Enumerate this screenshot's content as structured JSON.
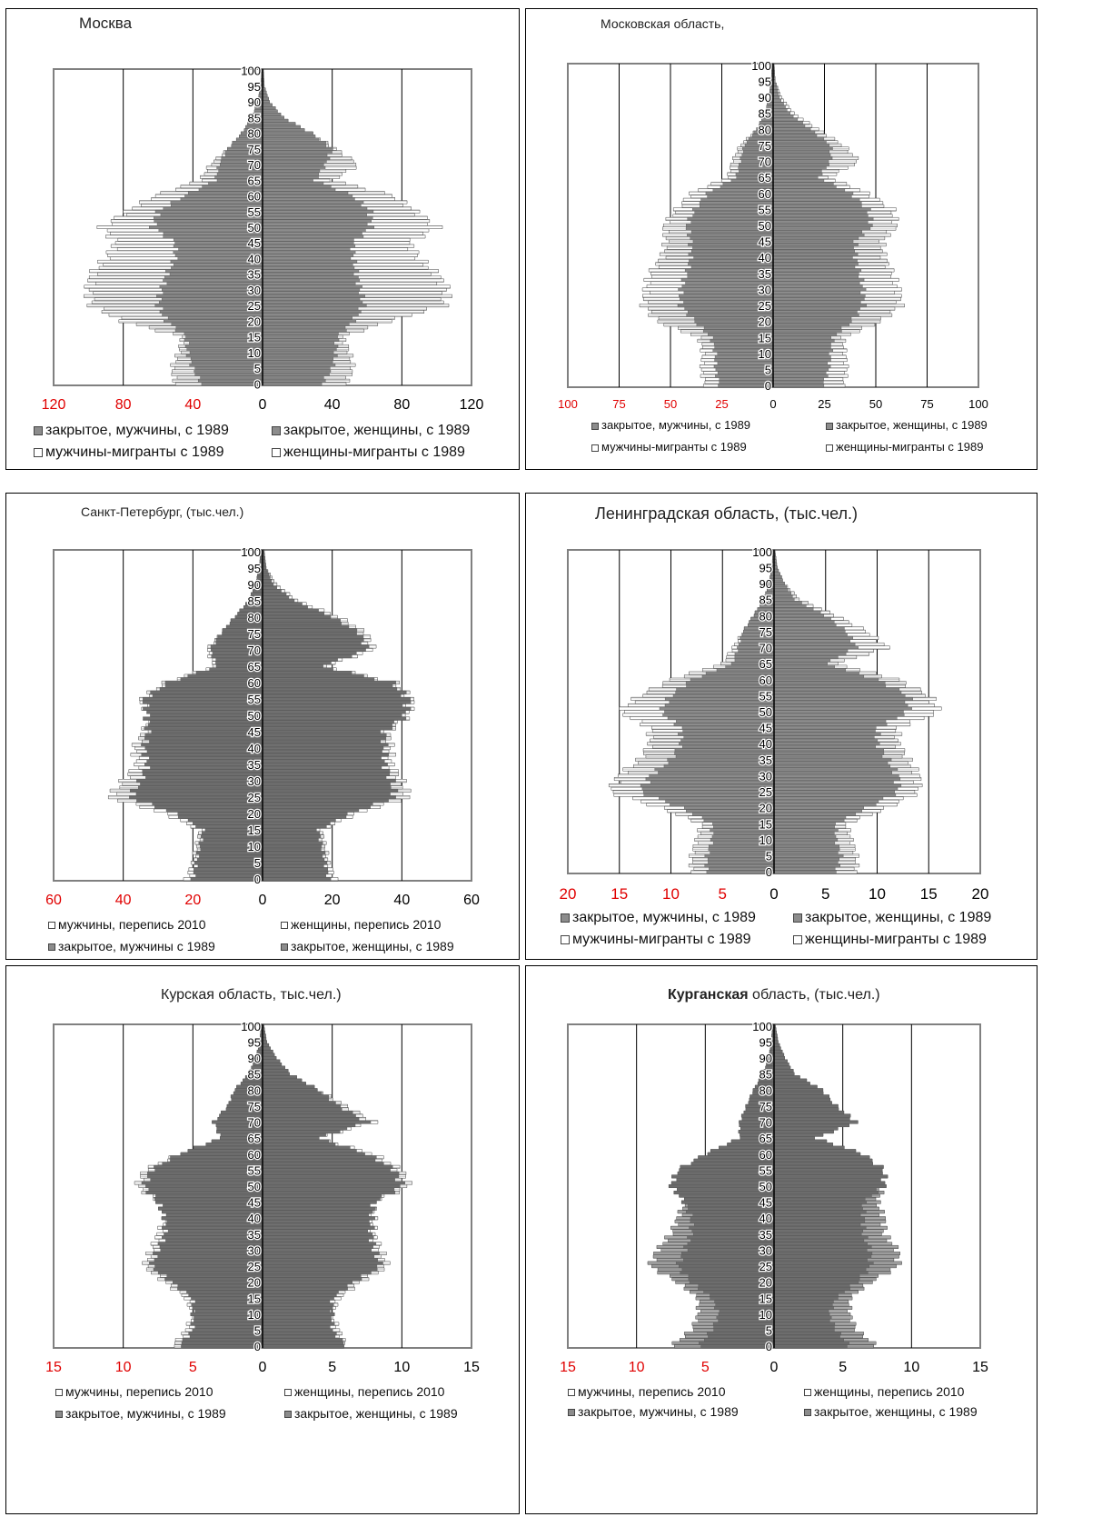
{
  "colors": {
    "closed_fill": "#8c8c8c",
    "closed_fill_dark": "#7a7a7a",
    "migrant_fill": "#ffffff",
    "stripe": "#5a5a5a",
    "frame": "#808080",
    "red_tick": "#e00000"
  },
  "chart_data": [
    {
      "type": "bar",
      "title": "Москва",
      "age_ticks": [
        "100",
        "95",
        "90",
        "85",
        "80",
        "75",
        "70",
        "65",
        "60",
        "55",
        "50",
        "45",
        "40",
        "35",
        "30",
        "25",
        "20",
        "15",
        "10",
        "5",
        "0"
      ],
      "x_tick_labels": [
        "120",
        "80",
        "40",
        "0",
        "40",
        "80",
        "120"
      ],
      "xlim": [
        -120,
        120
      ],
      "legend": [
        "закрытое, мужчины, с 1989",
        "закрытое, женщины, с 1989",
        "мужчины-мигранты с 1989",
        "женщины-мигранты с 1989"
      ],
      "ages": [
        0,
        5,
        10,
        15,
        20,
        25,
        30,
        35,
        40,
        45,
        50,
        55,
        60,
        65,
        70,
        75,
        80,
        85,
        90,
        95,
        100
      ],
      "series": [
        {
          "name": "закрытое, мужчины, с 1989",
          "values": [
            -35,
            -40,
            -43,
            -44,
            -55,
            -60,
            -58,
            -55,
            -50,
            -50,
            -63,
            -60,
            -45,
            -27,
            -25,
            -20,
            -12,
            -6,
            -3,
            -1,
            -0.5
          ]
        },
        {
          "name": "закрытое, женщины, с 1989",
          "values": [
            34,
            40,
            42,
            43,
            52,
            58,
            56,
            54,
            52,
            52,
            62,
            62,
            52,
            30,
            36,
            40,
            28,
            12,
            4,
            1,
            0.5
          ]
        },
        {
          "name": "мужчины-мигранты с 1989",
          "values": [
            -50,
            -52,
            -48,
            -46,
            -80,
            -98,
            -100,
            -98,
            -90,
            -84,
            -92,
            -78,
            -62,
            -36,
            -30,
            -20,
            -12,
            -6,
            -3,
            -1,
            -0.5
          ]
        },
        {
          "name": "женщины-мигранты с 1989",
          "values": [
            48,
            52,
            50,
            46,
            72,
            104,
            106,
            100,
            90,
            84,
            100,
            88,
            75,
            40,
            55,
            42,
            28,
            12,
            4,
            1,
            0.5
          ]
        }
      ]
    },
    {
      "type": "bar",
      "title": "Московская область,",
      "age_ticks": [
        "100",
        "95",
        "90",
        "85",
        "80",
        "75",
        "70",
        "65",
        "60",
        "55",
        "50",
        "45",
        "40",
        "35",
        "30",
        "25",
        "20",
        "15",
        "10",
        "5",
        "0"
      ],
      "x_tick_labels": [
        "100",
        "75",
        "50",
        "25",
        "0",
        "25",
        "50",
        "75",
        "100"
      ],
      "xlim": [
        -100,
        100
      ],
      "legend": [
        "закрытое, мужчины, с 1989",
        "закрытое, женщины, с 1989",
        "мужчины-мигранты с 1989",
        "женщины-мигранты с 1989"
      ],
      "ages": [
        0,
        5,
        10,
        15,
        20,
        25,
        30,
        35,
        40,
        45,
        50,
        55,
        60,
        65,
        70,
        75,
        80,
        85,
        90,
        95,
        100
      ],
      "series": [
        {
          "name": "закрытое, мужчины, с 1989",
          "values": [
            -26,
            -28,
            -28,
            -30,
            -38,
            -45,
            -45,
            -42,
            -40,
            -40,
            -42,
            -38,
            -32,
            -18,
            -16,
            -14,
            -8,
            -4,
            -2,
            -1,
            -0.5
          ]
        },
        {
          "name": "закрытое, женщины, с 1989",
          "values": [
            24,
            27,
            28,
            29,
            38,
            44,
            44,
            42,
            40,
            40,
            48,
            46,
            38,
            22,
            28,
            28,
            18,
            8,
            3,
            1,
            0.5
          ]
        },
        {
          "name": "мужчины-мигранты с 1989",
          "values": [
            -33,
            -35,
            -34,
            -36,
            -56,
            -63,
            -62,
            -60,
            -54,
            -52,
            -53,
            -47,
            -40,
            -22,
            -20,
            -16,
            -8,
            -4,
            -2,
            -1,
            -0.5
          ]
        },
        {
          "name": "женщины-мигранты с 1989",
          "values": [
            34,
            36,
            35,
            34,
            52,
            62,
            61,
            58,
            54,
            53,
            60,
            58,
            46,
            27,
            42,
            34,
            22,
            10,
            4,
            1,
            0.5
          ]
        }
      ]
    },
    {
      "type": "bar",
      "title": "Санкт-Петербург, (тыс.чел.)",
      "age_ticks": [
        "100",
        "95",
        "90",
        "85",
        "80",
        "75",
        "70",
        "65",
        "60",
        "55",
        "50",
        "45",
        "40",
        "35",
        "30",
        "25",
        "20",
        "15",
        "10",
        "5",
        "0"
      ],
      "x_tick_labels": [
        "60",
        "40",
        "20",
        "0",
        "20",
        "40",
        "60"
      ],
      "xlim": [
        -60,
        60
      ],
      "legend": [
        "мужчины, перепись 2010",
        "женщины, перепись 2010",
        "закрытое, мужчины с 1989",
        "закрытое, женщины, с 1989"
      ],
      "ages": [
        0,
        5,
        10,
        15,
        20,
        25,
        30,
        35,
        40,
        45,
        50,
        55,
        60,
        65,
        70,
        75,
        80,
        85,
        90,
        95,
        100
      ],
      "series": [
        {
          "name": "мужчины, перепись 2010",
          "values": [
            -22,
            -20,
            -19,
            -18,
            -28,
            -44,
            -40,
            -36,
            -37,
            -34,
            -33,
            -35,
            -28,
            -14,
            -16,
            -12,
            -8,
            -4,
            -2,
            -1,
            -0.5
          ]
        },
        {
          "name": "женщины, перепись 2010",
          "values": [
            21,
            19,
            18,
            17,
            27,
            42,
            40,
            37,
            37,
            36,
            42,
            43,
            38,
            18,
            32,
            30,
            22,
            10,
            4,
            1,
            0.5
          ]
        },
        {
          "name": "закрытое, мужчины с 1989",
          "values": [
            -20,
            -19,
            -18,
            -17,
            -25,
            -38,
            -35,
            -33,
            -34,
            -33,
            -33,
            -34,
            -27,
            -13,
            -15,
            -12,
            -8,
            -4,
            -2,
            -1,
            -0.5
          ]
        },
        {
          "name": "закрытое, женщины, с 1989",
          "values": [
            19,
            18,
            17,
            16,
            25,
            38,
            37,
            35,
            35,
            35,
            41,
            42,
            37,
            17,
            30,
            28,
            20,
            9,
            3,
            1,
            0.5
          ]
        }
      ]
    },
    {
      "type": "bar",
      "title": "Ленинградская область, (тыс.чел.)",
      "age_ticks": [
        "100",
        "95",
        "90",
        "85",
        "80",
        "75",
        "70",
        "65",
        "60",
        "55",
        "50",
        "45",
        "40",
        "35",
        "30",
        "25",
        "20",
        "15",
        "10",
        "5",
        "0"
      ],
      "x_tick_labels": [
        "20",
        "15",
        "10",
        "5",
        "0",
        "5",
        "10",
        "15",
        "20"
      ],
      "xlim": [
        -20,
        20
      ],
      "legend": [
        "закрытое, мужчины, с 1989",
        "закрытое, женщины, с 1989",
        "мужчины-мигранты с 1989",
        "женщины-мигранты с 1989"
      ],
      "ages": [
        0,
        5,
        10,
        15,
        20,
        25,
        30,
        35,
        40,
        45,
        50,
        55,
        60,
        65,
        70,
        75,
        80,
        85,
        90,
        95,
        100
      ],
      "series": [
        {
          "name": "закрытое, мужчины, с 1989",
          "values": [
            -6.5,
            -6.5,
            -6,
            -6,
            -9,
            -13,
            -12,
            -10,
            -9,
            -9,
            -11,
            -10,
            -8,
            -4,
            -3.5,
            -3,
            -2,
            -1,
            -0.5,
            -0.2,
            -0.1
          ]
        },
        {
          "name": "закрытое, женщины, с 1989",
          "values": [
            6,
            6.5,
            6,
            6,
            9,
            12,
            12,
            11,
            10,
            10,
            13,
            13,
            10,
            5,
            8,
            7,
            5,
            2,
            1,
            0.3,
            0.1
          ]
        },
        {
          "name": "мужчины-мигранты с 1989",
          "values": [
            -8,
            -8,
            -7.5,
            -7,
            -11,
            -16,
            -15,
            -13,
            -12,
            -12,
            -15,
            -13,
            -10,
            -5,
            -4,
            -3,
            -2,
            -1,
            -0.5,
            -0.2,
            -0.1
          ]
        },
        {
          "name": "женщины-мигранты с 1989",
          "values": [
            8,
            8,
            7.5,
            7,
            11,
            14,
            14,
            13,
            12,
            12,
            16,
            15,
            12,
            6,
            11,
            9,
            6,
            2.5,
            1,
            0.3,
            0.1
          ]
        }
      ]
    },
    {
      "type": "bar",
      "title": "Курская область, тыс.чел.)",
      "age_ticks": [
        "100",
        "95",
        "90",
        "85",
        "80",
        "75",
        "70",
        "65",
        "60",
        "55",
        "50",
        "45",
        "40",
        "35",
        "30",
        "25",
        "20",
        "15",
        "10",
        "5",
        "0"
      ],
      "x_tick_labels": [
        "15",
        "10",
        "5",
        "0",
        "5",
        "10",
        "15"
      ],
      "xlim": [
        -15,
        15
      ],
      "legend": [
        "мужчины, перепись 2010",
        "женщины, перепись 2010",
        "закрытое, мужчины, с 1989",
        "закрытое, женщины, с 1989"
      ],
      "ages": [
        0,
        5,
        10,
        15,
        20,
        25,
        30,
        35,
        40,
        45,
        50,
        55,
        60,
        65,
        70,
        75,
        80,
        85,
        90,
        95,
        100
      ],
      "series": [
        {
          "name": "мужчины, перепись 2010",
          "values": [
            -6.5,
            -5.5,
            -5,
            -5.5,
            -7,
            -8.5,
            -8,
            -7.5,
            -7,
            -7.5,
            -9,
            -8.5,
            -6,
            -3,
            -3.5,
            -2.5,
            -2,
            -1,
            -0.5,
            -0.2,
            -0.1
          ]
        },
        {
          "name": "женщины, перепись 2010",
          "values": [
            6,
            5.5,
            5,
            5.5,
            7,
            9,
            8.5,
            8,
            8,
            8,
            10.5,
            10,
            8,
            4,
            8,
            6,
            4,
            2,
            1,
            0.3,
            0.1
          ]
        },
        {
          "name": "закрытое, мужчины, с 1989",
          "values": [
            -6,
            -5,
            -5,
            -5,
            -6.5,
            -8,
            -7.5,
            -7,
            -7,
            -7.5,
            -8.5,
            -8,
            -6,
            -3,
            -3.5,
            -2.5,
            -2,
            -1,
            -0.5,
            -0.2,
            -0.1
          ]
        },
        {
          "name": "закрытое, женщины, с 1989",
          "values": [
            6,
            5,
            5,
            5,
            6.5,
            8.5,
            8,
            7.8,
            7.8,
            8,
            10,
            9.5,
            7.5,
            4,
            7.5,
            5.5,
            4,
            2,
            1,
            0.3,
            0.1
          ]
        }
      ]
    },
    {
      "type": "bar",
      "title_bold": "Курганская",
      "title": "область, (тыс.чел.)",
      "age_ticks": [
        "100",
        "95",
        "90",
        "85",
        "80",
        "75",
        "70",
        "65",
        "60",
        "55",
        "50",
        "45",
        "40",
        "35",
        "30",
        "25",
        "20",
        "15",
        "10",
        "5",
        "0"
      ],
      "x_tick_labels": [
        "15",
        "10",
        "5",
        "0",
        "5",
        "10",
        "15"
      ],
      "xlim": [
        -15,
        15
      ],
      "legend": [
        "мужчины, перепись 2010",
        "женщины, перепись 2010",
        "закрытое, мужчины, с 1989",
        "закрытое, женщины, с 1989"
      ],
      "ages": [
        0,
        5,
        10,
        15,
        20,
        25,
        30,
        35,
        40,
        45,
        50,
        55,
        60,
        65,
        70,
        75,
        80,
        85,
        90,
        95,
        100
      ],
      "series": [
        {
          "name": "мужчины, перепись 2010",
          "values": [
            -5.5,
            -4.5,
            -4,
            -4.5,
            -6,
            -7,
            -6.5,
            -6,
            -6,
            -6.5,
            -7.5,
            -7,
            -5,
            -2.5,
            -2.5,
            -2,
            -1.5,
            -0.8,
            -0.4,
            -0.2,
            -0.1
          ]
        },
        {
          "name": "женщины, перепись 2010",
          "values": [
            5.5,
            4.5,
            4,
            4.5,
            6,
            7,
            7,
            6.5,
            6.5,
            6.5,
            8,
            8,
            6.5,
            3,
            6,
            4.5,
            3.5,
            1.5,
            0.8,
            0.3,
            0.1
          ]
        },
        {
          "name": "закрытое, мужчины, с 1989",
          "values": [
            -7.5,
            -6,
            -5.5,
            -5.5,
            -7,
            -9,
            -8.5,
            -7.5,
            -7,
            -6.5,
            -7.5,
            -7,
            -5,
            -2.5,
            -2.5,
            -2,
            -1.5,
            -0.8,
            -0.4,
            -0.2,
            -0.1
          ]
        },
        {
          "name": "закрытое, женщины, с 1989",
          "values": [
            7.5,
            6,
            5.5,
            5.5,
            7,
            9,
            9,
            8,
            8,
            7.5,
            8,
            8,
            6.5,
            3,
            6,
            4.5,
            3.5,
            1.5,
            0.8,
            0.3,
            0.1
          ]
        }
      ]
    }
  ]
}
